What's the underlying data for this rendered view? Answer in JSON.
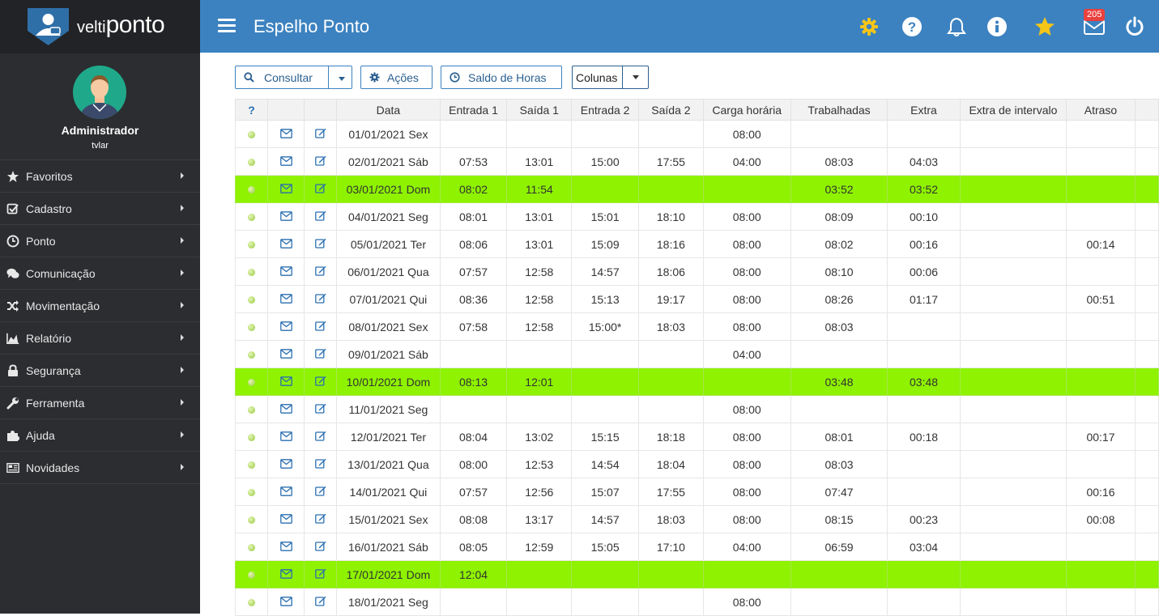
{
  "app": {
    "logo_prefix": "velti",
    "logo_suffix": "ponto",
    "page_title": "Espelho Ponto",
    "notification_count": "205"
  },
  "user": {
    "name": "Administrador",
    "login": "tvlar"
  },
  "menu": [
    {
      "label": "Favoritos",
      "icon": "star-icon"
    },
    {
      "label": "Cadastro",
      "icon": "check-square-icon"
    },
    {
      "label": "Ponto",
      "icon": "clock-icon"
    },
    {
      "label": "Comunicação",
      "icon": "chat-icon"
    },
    {
      "label": "Movimentação",
      "icon": "shuffle-icon"
    },
    {
      "label": "Relatório",
      "icon": "area-chart-icon"
    },
    {
      "label": "Segurança",
      "icon": "lock-icon"
    },
    {
      "label": "Ferramenta",
      "icon": "wrench-icon"
    },
    {
      "label": "Ajuda",
      "icon": "puzzle-icon"
    },
    {
      "label": "Novidades",
      "icon": "newspaper-icon"
    }
  ],
  "toolbar": {
    "consultar": "Consultar",
    "acoes": "Ações",
    "saldo": "Saldo de Horas",
    "colunas": "Colunas"
  },
  "table": {
    "help": "?",
    "columns": [
      "Data",
      "Entrada 1",
      "Saída 1",
      "Entrada 2",
      "Saída 2",
      "Carga horária",
      "Trabalhadas",
      "Extra",
      "Extra de intervalo",
      "Atraso"
    ],
    "rows": [
      {
        "c": [
          "01/01/2021 Sex",
          "",
          "",
          "",
          "",
          "08:00",
          "",
          "",
          "",
          ""
        ],
        "hl": false
      },
      {
        "c": [
          "02/01/2021 Sáb",
          "07:53",
          "13:01",
          "15:00",
          "17:55",
          "04:00",
          "08:03",
          "04:03",
          "",
          ""
        ],
        "hl": false
      },
      {
        "c": [
          "03/01/2021 Dom",
          "08:02",
          "11:54",
          "",
          "",
          "",
          "03:52",
          "03:52",
          "",
          ""
        ],
        "hl": true
      },
      {
        "c": [
          "04/01/2021 Seg",
          "08:01",
          "13:01",
          "15:01",
          "18:10",
          "08:00",
          "08:09",
          "00:10",
          "",
          ""
        ],
        "hl": false
      },
      {
        "c": [
          "05/01/2021 Ter",
          "08:06",
          "13:01",
          "15:09",
          "18:16",
          "08:00",
          "08:02",
          "00:16",
          "",
          "00:14"
        ],
        "hl": false
      },
      {
        "c": [
          "06/01/2021 Qua",
          "07:57",
          "12:58",
          "14:57",
          "18:06",
          "08:00",
          "08:10",
          "00:06",
          "",
          ""
        ],
        "hl": false
      },
      {
        "c": [
          "07/01/2021 Qui",
          "08:36",
          "12:58",
          "15:13",
          "19:17",
          "08:00",
          "08:26",
          "01:17",
          "",
          "00:51"
        ],
        "hl": false
      },
      {
        "c": [
          "08/01/2021 Sex",
          "07:58",
          "12:58",
          "15:00*",
          "18:03",
          "08:00",
          "08:03",
          "",
          "",
          ""
        ],
        "hl": false
      },
      {
        "c": [
          "09/01/2021 Sáb",
          "",
          "",
          "",
          "",
          "04:00",
          "",
          "",
          "",
          ""
        ],
        "hl": false
      },
      {
        "c": [
          "10/01/2021 Dom",
          "08:13",
          "12:01",
          "",
          "",
          "",
          "03:48",
          "03:48",
          "",
          ""
        ],
        "hl": true
      },
      {
        "c": [
          "11/01/2021 Seg",
          "",
          "",
          "",
          "",
          "08:00",
          "",
          "",
          "",
          ""
        ],
        "hl": false
      },
      {
        "c": [
          "12/01/2021 Ter",
          "08:04",
          "13:02",
          "15:15",
          "18:18",
          "08:00",
          "08:01",
          "00:18",
          "",
          "00:17"
        ],
        "hl": false
      },
      {
        "c": [
          "13/01/2021 Qua",
          "08:00",
          "12:53",
          "14:54",
          "18:04",
          "08:00",
          "08:03",
          "",
          "",
          ""
        ],
        "hl": false
      },
      {
        "c": [
          "14/01/2021 Qui",
          "07:57",
          "12:56",
          "15:07",
          "17:55",
          "08:00",
          "07:47",
          "",
          "",
          "00:16"
        ],
        "hl": false
      },
      {
        "c": [
          "15/01/2021 Sex",
          "08:08",
          "13:17",
          "14:57",
          "18:03",
          "08:00",
          "08:15",
          "00:23",
          "",
          "00:08"
        ],
        "hl": false
      },
      {
        "c": [
          "16/01/2021 Sáb",
          "08:05",
          "12:59",
          "15:05",
          "17:10",
          "04:00",
          "06:59",
          "03:04",
          "",
          ""
        ],
        "hl": false
      },
      {
        "c": [
          "17/01/2021 Dom",
          "12:04",
          "",
          "",
          "",
          "",
          "",
          "",
          "",
          ""
        ],
        "hl": true
      },
      {
        "c": [
          "18/01/2021 Seg",
          "",
          "",
          "",
          "",
          "08:00",
          "",
          "",
          "",
          ""
        ],
        "hl": false
      }
    ]
  }
}
